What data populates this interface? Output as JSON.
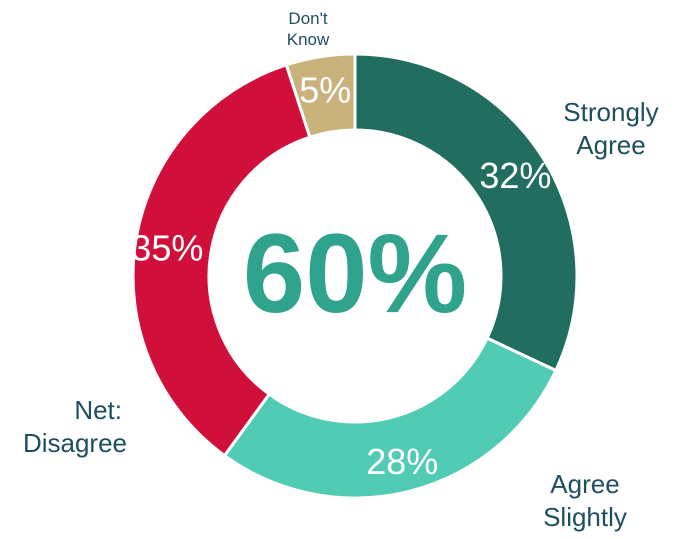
{
  "chart_data": {
    "type": "pie",
    "center_label": "60%",
    "slices": [
      {
        "label": [
          "Strongly",
          "Agree"
        ],
        "value": 32,
        "value_label": "32%",
        "color": "#216d60"
      },
      {
        "label": [
          "Agree",
          "Slightly"
        ],
        "value": 28,
        "value_label": "28%",
        "color": "#52cbb5"
      },
      {
        "label": [
          "Net:",
          "Disagree"
        ],
        "value": 35,
        "value_label": "35%",
        "color": "#d0103a"
      },
      {
        "label": [
          "Don't",
          "Know"
        ],
        "value": 5,
        "value_label": "5%",
        "color": "#c9b27b"
      }
    ],
    "colors": {
      "center_text": "#2fa38c",
      "separator": "#ffffff",
      "label_text": "#1f4e5f"
    }
  }
}
